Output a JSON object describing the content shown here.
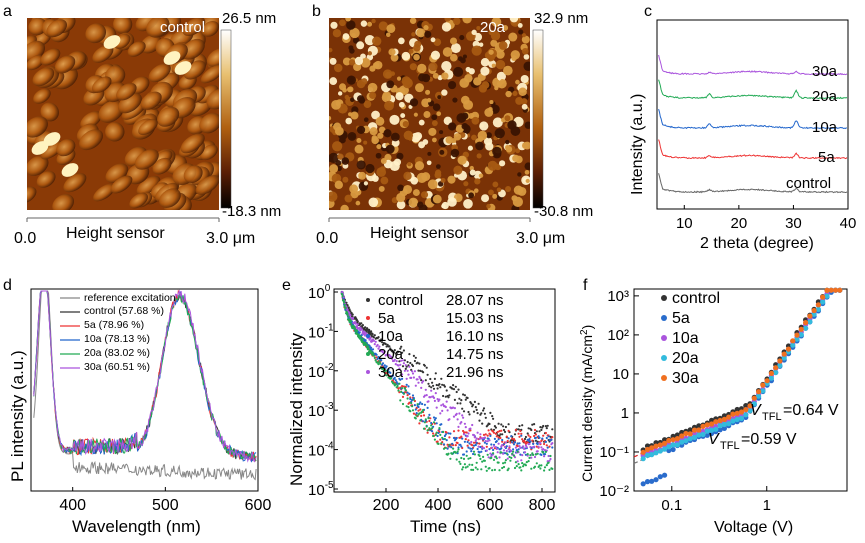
{
  "panels": {
    "a": {
      "letter": "a",
      "sample_label": "control",
      "scale_max": "26.5 nm",
      "scale_min": "-18.3 nm",
      "axis_left": "0.0",
      "axis_mid": "Height sensor",
      "axis_right": "3.0 μm"
    },
    "b": {
      "letter": "b",
      "sample_label": "20a",
      "scale_max": "32.9 nm",
      "scale_min": "-30.8 nm",
      "axis_left": "0.0",
      "axis_mid": "Height sensor",
      "axis_right": "3.0 μm"
    }
  },
  "colors": {
    "control": "#333333",
    "5a": "#ee3333",
    "10a": "#2266cc",
    "20a": "#22aa55",
    "30a": "#aa55dd",
    "ref": "#888888",
    "f_5a": "#2a6ccc",
    "f_10a": "#aa55dd",
    "f_20a": "#33bbdd",
    "f_30a": "#f07020"
  },
  "chart_data": [
    {
      "panel": "c",
      "type": "line",
      "title": "",
      "xlabel": "2 theta (degree)",
      "ylabel": "Intensity (a.u.)",
      "xlim": [
        5,
        40
      ],
      "xticks": [
        10,
        20,
        30,
        40
      ],
      "series_labels": [
        "30a",
        "20a",
        "10a",
        "5a",
        "control"
      ]
    },
    {
      "panel": "d",
      "type": "line",
      "xlabel": "Wavelength (nm)",
      "ylabel": "PL intensity (a.u.)",
      "xlim": [
        355,
        600
      ],
      "xticks": [
        400,
        500,
        600
      ],
      "legend": [
        "reference excitation",
        "control (57.68 %)",
        "5a (78.96 %)",
        "10a (78.13 %)",
        "20a (83.02 %)",
        "30a (60.51 %)"
      ],
      "peaks_nm": [
        370,
        515
      ]
    },
    {
      "panel": "e",
      "type": "scatter",
      "yscale": "log",
      "xlabel": "Time (ns)",
      "ylabel": "Normalized intensity",
      "xlim": [
        0,
        850
      ],
      "ylim": [
        1e-05,
        1
      ],
      "xticks": [
        200,
        400,
        600,
        800
      ],
      "yticks": [
        "10^0",
        "10^-1",
        "10^-2",
        "10^-3",
        "10^-4",
        "10^-5"
      ],
      "series": [
        {
          "name": "control",
          "lifetime": "28.07 ns",
          "floor": 0.00025
        },
        {
          "name": "5a",
          "lifetime": "15.03 ns",
          "floor": 0.00018
        },
        {
          "name": "10a",
          "lifetime": "16.10 ns",
          "floor": 0.00013
        },
        {
          "name": "20a",
          "lifetime": "14.75 ns",
          "floor": 5e-05
        },
        {
          "name": "30a",
          "lifetime": "21.96 ns",
          "floor": 9e-05
        }
      ]
    },
    {
      "panel": "f",
      "type": "scatter",
      "xscale": "log",
      "yscale": "log",
      "xlabel": "Voltage (V)",
      "ylabel": "Current density (mA/cm²)",
      "xlim": [
        0.04,
        7
      ],
      "ylim": [
        0.01,
        1500
      ],
      "xticks": [
        "0.1",
        "1"
      ],
      "yticks": [
        "10³",
        "10²",
        "10",
        "1",
        "10⁻¹",
        "10⁻²"
      ],
      "legend": [
        "control",
        "5a",
        "10a",
        "20a",
        "30a"
      ],
      "annotations": [
        {
          "text": "VTFL=0.64 V",
          "sub": "TFL",
          "value": "=0.64 V"
        },
        {
          "text": "VTFL=0.59 V",
          "sub": "TFL",
          "value": "=0.59 V"
        }
      ]
    }
  ],
  "labels": {
    "c": "c",
    "d": "d",
    "e": "e",
    "f": "f",
    "v": "V",
    "c_x": "2 theta (degree)",
    "c_y": "Intensity (a.u.)",
    "d_x": "Wavelength (nm)",
    "d_y": "PL intensity (a.u.)",
    "e_x": "Time (ns)",
    "e_y": "Normalized intensity",
    "f_x": "Voltage (V)",
    "f_y": "Current density (mA/cm",
    "f_y_sup": "2",
    "f_y_end": ")"
  }
}
